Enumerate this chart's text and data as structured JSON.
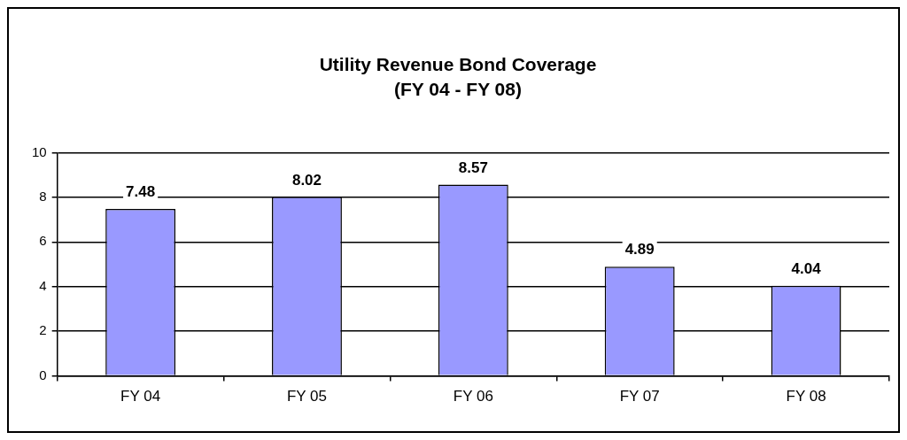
{
  "chart_data": {
    "type": "bar",
    "title": "Utility Revenue Bond Coverage",
    "subtitle": "(FY 04 - FY 08)",
    "categories": [
      "FY 04",
      "FY 05",
      "FY 06",
      "FY 07",
      "FY 08"
    ],
    "values": [
      7.48,
      8.02,
      8.57,
      4.89,
      4.04
    ],
    "color": "#9999ff",
    "ylim": [
      0,
      10
    ],
    "yticks": [
      0,
      2,
      4,
      6,
      8,
      10
    ],
    "grid": "y",
    "legend": false,
    "data_labels": true
  }
}
